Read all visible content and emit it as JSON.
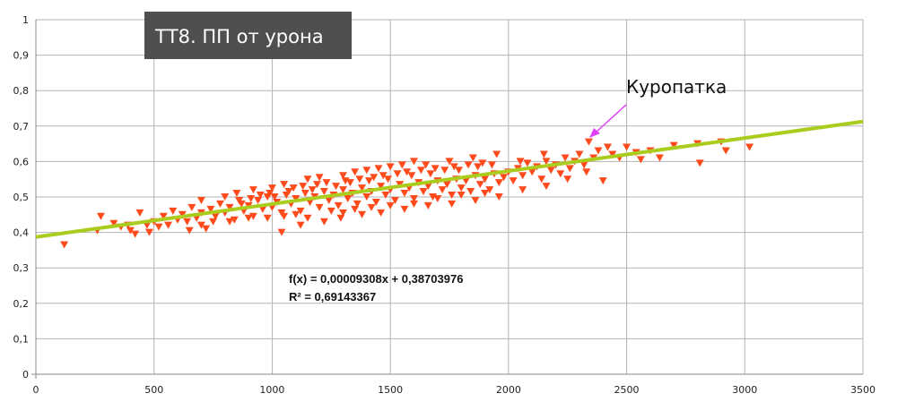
{
  "chart_data": {
    "type": "scatter",
    "title": "ТТ8. ПП от урона",
    "xlim": [
      0,
      3500
    ],
    "ylim": [
      0,
      1
    ],
    "x_ticks": [
      0,
      500,
      1000,
      1500,
      2000,
      2500,
      3000,
      3500
    ],
    "y_ticks": [
      0,
      0.1,
      0.2,
      0.3,
      0.4,
      0.5,
      0.6,
      0.7,
      0.8,
      0.9,
      1
    ],
    "x_tick_labels": [
      "0",
      "500",
      "1000",
      "1500",
      "2000",
      "2500",
      "3000",
      "3500"
    ],
    "y_tick_labels": [
      "0",
      "0,1",
      "0,2",
      "0,3",
      "0,4",
      "0,5",
      "0,6",
      "0,7",
      "0,8",
      "0,9",
      "1"
    ],
    "grid": true,
    "marker": "triangle-down",
    "series": [
      {
        "color": "#ff4a1c",
        "points": [
          [
            120,
            0.365
          ],
          [
            260,
            0.405
          ],
          [
            275,
            0.445
          ],
          [
            330,
            0.425
          ],
          [
            360,
            0.415
          ],
          [
            390,
            0.42
          ],
          [
            400,
            0.405
          ],
          [
            420,
            0.395
          ],
          [
            440,
            0.455
          ],
          [
            470,
            0.42
          ],
          [
            480,
            0.4
          ],
          [
            500,
            0.43
          ],
          [
            520,
            0.415
          ],
          [
            540,
            0.445
          ],
          [
            560,
            0.42
          ],
          [
            580,
            0.46
          ],
          [
            600,
            0.435
          ],
          [
            620,
            0.45
          ],
          [
            640,
            0.43
          ],
          [
            660,
            0.47
          ],
          [
            680,
            0.44
          ],
          [
            700,
            0.455
          ],
          [
            720,
            0.41
          ],
          [
            740,
            0.465
          ],
          [
            760,
            0.445
          ],
          [
            780,
            0.48
          ],
          [
            800,
            0.455
          ],
          [
            820,
            0.47
          ],
          [
            840,
            0.435
          ],
          [
            860,
            0.49
          ],
          [
            880,
            0.46
          ],
          [
            900,
            0.475
          ],
          [
            920,
            0.445
          ],
          [
            940,
            0.49
          ],
          [
            960,
            0.465
          ],
          [
            980,
            0.5
          ],
          [
            1000,
            0.47
          ],
          [
            1020,
            0.485
          ],
          [
            1040,
            0.455
          ],
          [
            1060,
            0.505
          ],
          [
            1080,
            0.48
          ],
          [
            1100,
            0.495
          ],
          [
            1120,
            0.46
          ],
          [
            1140,
            0.51
          ],
          [
            1160,
            0.485
          ],
          [
            1180,
            0.5
          ],
          [
            1200,
            0.47
          ],
          [
            1220,
            0.515
          ],
          [
            1240,
            0.49
          ],
          [
            1260,
            0.505
          ],
          [
            1280,
            0.475
          ],
          [
            1300,
            0.52
          ],
          [
            1320,
            0.495
          ],
          [
            1340,
            0.51
          ],
          [
            1360,
            0.48
          ],
          [
            1380,
            0.525
          ],
          [
            1400,
            0.5
          ],
          [
            1420,
            0.515
          ],
          [
            1440,
            0.485
          ],
          [
            1460,
            0.53
          ],
          [
            1480,
            0.505
          ],
          [
            1500,
            0.52
          ],
          [
            1520,
            0.49
          ],
          [
            1540,
            0.535
          ],
          [
            1560,
            0.51
          ],
          [
            1580,
            0.525
          ],
          [
            1600,
            0.495
          ],
          [
            1620,
            0.54
          ],
          [
            1640,
            0.515
          ],
          [
            1660,
            0.53
          ],
          [
            1680,
            0.5
          ],
          [
            1700,
            0.545
          ],
          [
            1720,
            0.52
          ],
          [
            1740,
            0.535
          ],
          [
            1760,
            0.505
          ],
          [
            1780,
            0.55
          ],
          [
            1800,
            0.525
          ],
          [
            1820,
            0.545
          ],
          [
            1840,
            0.515
          ],
          [
            1860,
            0.56
          ],
          [
            1880,
            0.535
          ],
          [
            1900,
            0.55
          ],
          [
            1920,
            0.52
          ],
          [
            1940,
            0.565
          ],
          [
            1960,
            0.54
          ],
          [
            1980,
            0.555
          ],
          [
            2000,
            0.57
          ],
          [
            2020,
            0.545
          ],
          [
            2040,
            0.58
          ],
          [
            2060,
            0.56
          ],
          [
            2080,
            0.595
          ],
          [
            2100,
            0.57
          ],
          [
            2120,
            0.585
          ],
          [
            2140,
            0.55
          ],
          [
            2160,
            0.6
          ],
          [
            2180,
            0.575
          ],
          [
            2200,
            0.59
          ],
          [
            2220,
            0.565
          ],
          [
            2240,
            0.61
          ],
          [
            2260,
            0.58
          ],
          [
            2280,
            0.6
          ],
          [
            2300,
            0.62
          ],
          [
            2320,
            0.59
          ],
          [
            2340,
            0.655
          ],
          [
            2360,
            0.61
          ],
          [
            2380,
            0.63
          ],
          [
            2400,
            0.545
          ],
          [
            2420,
            0.64
          ],
          [
            2440,
            0.62
          ],
          [
            2470,
            0.61
          ],
          [
            2500,
            0.64
          ],
          [
            2540,
            0.625
          ],
          [
            2560,
            0.605
          ],
          [
            2600,
            0.63
          ],
          [
            2640,
            0.61
          ],
          [
            2700,
            0.645
          ],
          [
            2800,
            0.65
          ],
          [
            2810,
            0.595
          ],
          [
            2900,
            0.655
          ],
          [
            2920,
            0.63
          ],
          [
            3020,
            0.64
          ],
          [
            650,
            0.405
          ],
          [
            700,
            0.42
          ],
          [
            750,
            0.43
          ],
          [
            820,
            0.43
          ],
          [
            900,
            0.44
          ],
          [
            980,
            0.44
          ],
          [
            1050,
            0.445
          ],
          [
            1100,
            0.45
          ],
          [
            1150,
            0.44
          ],
          [
            1250,
            0.46
          ],
          [
            1300,
            0.455
          ],
          [
            1350,
            0.465
          ],
          [
            1420,
            0.47
          ],
          [
            1500,
            0.475
          ],
          [
            1600,
            0.48
          ],
          [
            1700,
            0.495
          ],
          [
            1800,
            0.505
          ],
          [
            1900,
            0.51
          ],
          [
            700,
            0.49
          ],
          [
            800,
            0.5
          ],
          [
            850,
            0.51
          ],
          [
            920,
            0.52
          ],
          [
            1000,
            0.525
          ],
          [
            1050,
            0.535
          ],
          [
            1150,
            0.55
          ],
          [
            1200,
            0.555
          ],
          [
            1300,
            0.56
          ],
          [
            1350,
            0.57
          ],
          [
            1400,
            0.575
          ],
          [
            1450,
            0.58
          ],
          [
            1500,
            0.585
          ],
          [
            1550,
            0.59
          ],
          [
            1600,
            0.6
          ],
          [
            1650,
            0.59
          ],
          [
            1750,
            0.6
          ],
          [
            1850,
            0.61
          ],
          [
            1950,
            0.62
          ],
          [
            2050,
            0.6
          ],
          [
            2150,
            0.62
          ],
          [
            1040,
            0.4
          ],
          [
            1120,
            0.42
          ],
          [
            1220,
            0.43
          ],
          [
            1290,
            0.44
          ],
          [
            1380,
            0.45
          ],
          [
            1460,
            0.455
          ],
          [
            1560,
            0.465
          ],
          [
            1660,
            0.475
          ],
          [
            1760,
            0.48
          ],
          [
            1860,
            0.49
          ],
          [
            1960,
            0.5
          ],
          [
            2060,
            0.52
          ],
          [
            2160,
            0.53
          ],
          [
            2250,
            0.55
          ],
          [
            2330,
            0.57
          ],
          [
            870,
            0.48
          ],
          [
            910,
            0.495
          ],
          [
            950,
            0.505
          ],
          [
            990,
            0.51
          ],
          [
            1010,
            0.5
          ],
          [
            1070,
            0.515
          ],
          [
            1090,
            0.525
          ],
          [
            1130,
            0.53
          ],
          [
            1170,
            0.52
          ],
          [
            1190,
            0.535
          ],
          [
            1230,
            0.54
          ],
          [
            1270,
            0.53
          ],
          [
            1310,
            0.545
          ],
          [
            1330,
            0.54
          ],
          [
            1370,
            0.55
          ],
          [
            1410,
            0.545
          ],
          [
            1430,
            0.555
          ],
          [
            1470,
            0.56
          ],
          [
            1490,
            0.55
          ],
          [
            1530,
            0.565
          ],
          [
            1570,
            0.57
          ],
          [
            1590,
            0.56
          ],
          [
            1630,
            0.575
          ],
          [
            1670,
            0.565
          ],
          [
            1690,
            0.58
          ],
          [
            1730,
            0.575
          ],
          [
            1770,
            0.585
          ],
          [
            1790,
            0.575
          ],
          [
            1830,
            0.59
          ],
          [
            1870,
            0.585
          ],
          [
            1890,
            0.595
          ],
          [
            1930,
            0.59
          ]
        ]
      }
    ],
    "trendline": {
      "slope": 9.308e-05,
      "intercept": 0.38703976,
      "color": "#a9cc1f",
      "equation": "f(x) = 0,00009308x + 0,38703976",
      "r2": "R² = 0,69143367"
    },
    "annotation": {
      "text": "Куропатка",
      "arrow_color": "#e040fb"
    }
  }
}
